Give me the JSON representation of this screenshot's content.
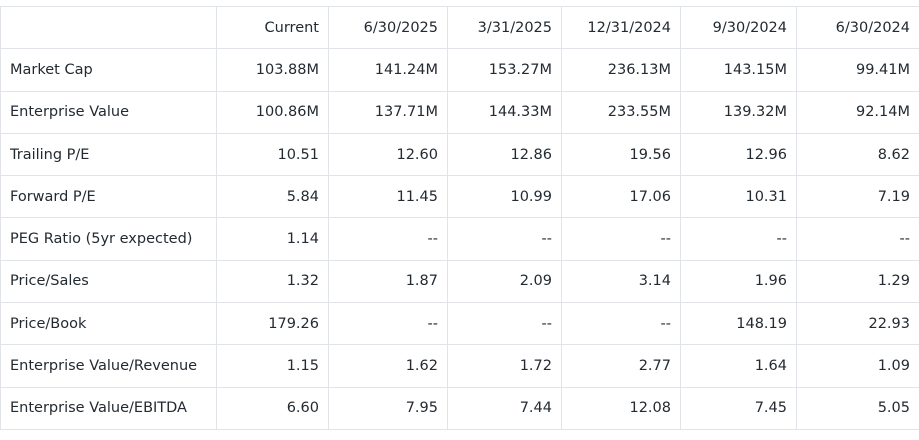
{
  "valuation_table": {
    "columns": [
      "",
      "Current",
      "6/30/2025",
      "3/31/2025",
      "12/31/2024",
      "9/30/2024",
      "6/30/2024"
    ],
    "rows": [
      {
        "label": "Market Cap",
        "values": [
          "103.88M",
          "141.24M",
          "153.27M",
          "236.13M",
          "143.15M",
          "99.41M"
        ]
      },
      {
        "label": "Enterprise Value",
        "values": [
          "100.86M",
          "137.71M",
          "144.33M",
          "233.55M",
          "139.32M",
          "92.14M"
        ]
      },
      {
        "label": "Trailing P/E",
        "values": [
          "10.51",
          "12.60",
          "12.86",
          "19.56",
          "12.96",
          "8.62"
        ]
      },
      {
        "label": "Forward P/E",
        "values": [
          "5.84",
          "11.45",
          "10.99",
          "17.06",
          "10.31",
          "7.19"
        ]
      },
      {
        "label": "PEG Ratio (5yr expected)",
        "values": [
          "1.14",
          "--",
          "--",
          "--",
          "--",
          "--"
        ]
      },
      {
        "label": "Price/Sales",
        "values": [
          "1.32",
          "1.87",
          "2.09",
          "3.14",
          "1.96",
          "1.29"
        ]
      },
      {
        "label": "Price/Book",
        "values": [
          "179.26",
          "--",
          "--",
          "--",
          "148.19",
          "22.93"
        ]
      },
      {
        "label": "Enterprise Value/Revenue",
        "values": [
          "1.15",
          "1.62",
          "1.72",
          "2.77",
          "1.64",
          "1.09"
        ]
      },
      {
        "label": "Enterprise Value/EBITDA",
        "values": [
          "6.60",
          "7.95",
          "7.44",
          "12.08",
          "7.45",
          "5.05"
        ]
      }
    ]
  },
  "colors": {
    "text": "#232a31",
    "border": "#e0e4e9",
    "background": "#ffffff"
  }
}
